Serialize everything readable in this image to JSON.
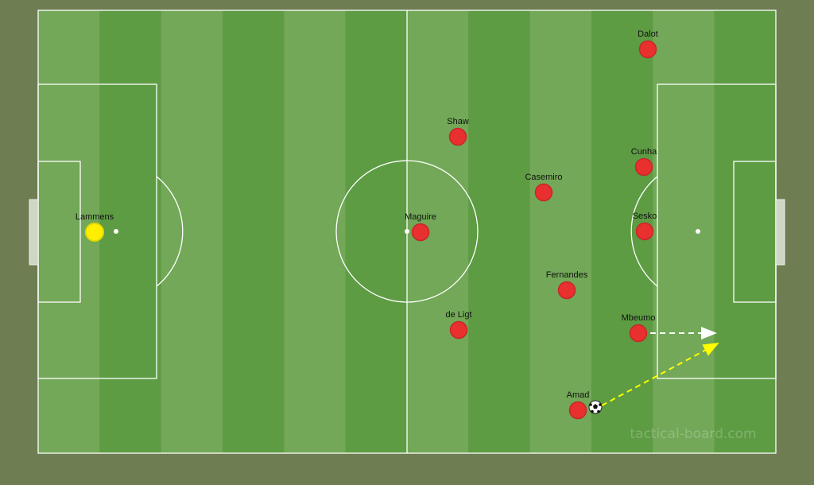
{
  "watermark": "tactical-board.com",
  "colors": {
    "background": "#6e7d52",
    "pitch_light": "#72a857",
    "pitch_dark": "#5d9c43",
    "lines": "#ffffff",
    "outfield_player": "#e8302f",
    "goalkeeper": "#ffee00",
    "pass_arrow": "#ffff00",
    "run_arrow": "#ffffff"
  },
  "players": {
    "goalkeeper": "Lammens",
    "maguire": "Maguire",
    "shaw": "Shaw",
    "de_ligt": "de Ligt",
    "casemiro": "Casemiro",
    "fernandes": "Fernandes",
    "dalot": "Dalot",
    "cunha": "Cunha",
    "sesko": "Sesko",
    "mbeumo": "Mbeumo",
    "amad": "Amad"
  },
  "icons": [
    "soccer-ball-icon",
    "dashed-arrow-icon"
  ]
}
